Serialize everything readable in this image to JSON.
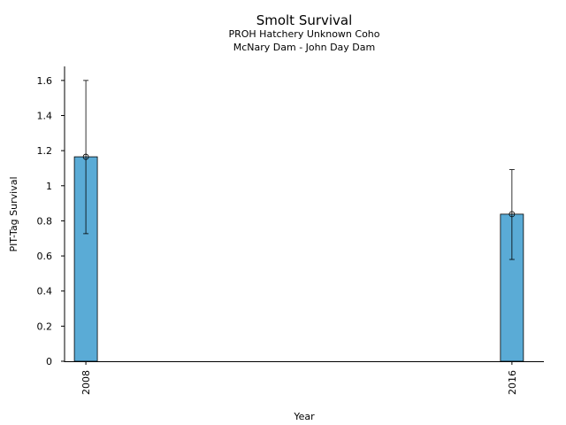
{
  "chart_data": {
    "type": "bar",
    "title": "Smolt Survival",
    "subtitle": [
      "PROH Hatchery Unknown Coho",
      "McNary Dam - John Day Dam"
    ],
    "xlabel": "Year",
    "ylabel": "PIT-Tag Survival",
    "categories": [
      "2008",
      "2016"
    ],
    "x_range": [
      2007.6,
      2016.6
    ],
    "ylim": [
      0,
      1.68
    ],
    "yticks": [
      0,
      0.2,
      0.4,
      0.6,
      0.8,
      1,
      1.2,
      1.4,
      1.6
    ],
    "ytick_labels": [
      "0",
      "0.2",
      "0.4",
      "0.6",
      "0.8",
      "1",
      "1.2",
      "1.4",
      "1.6"
    ],
    "series": [
      {
        "values": [
          1.165,
          0.838
        ],
        "error_low": [
          0.727,
          0.58
        ],
        "error_high": [
          1.6,
          1.092
        ],
        "color": "#5aabd6"
      }
    ],
    "grid": false,
    "legend": "none",
    "tick_label_rotation": "vertical"
  }
}
